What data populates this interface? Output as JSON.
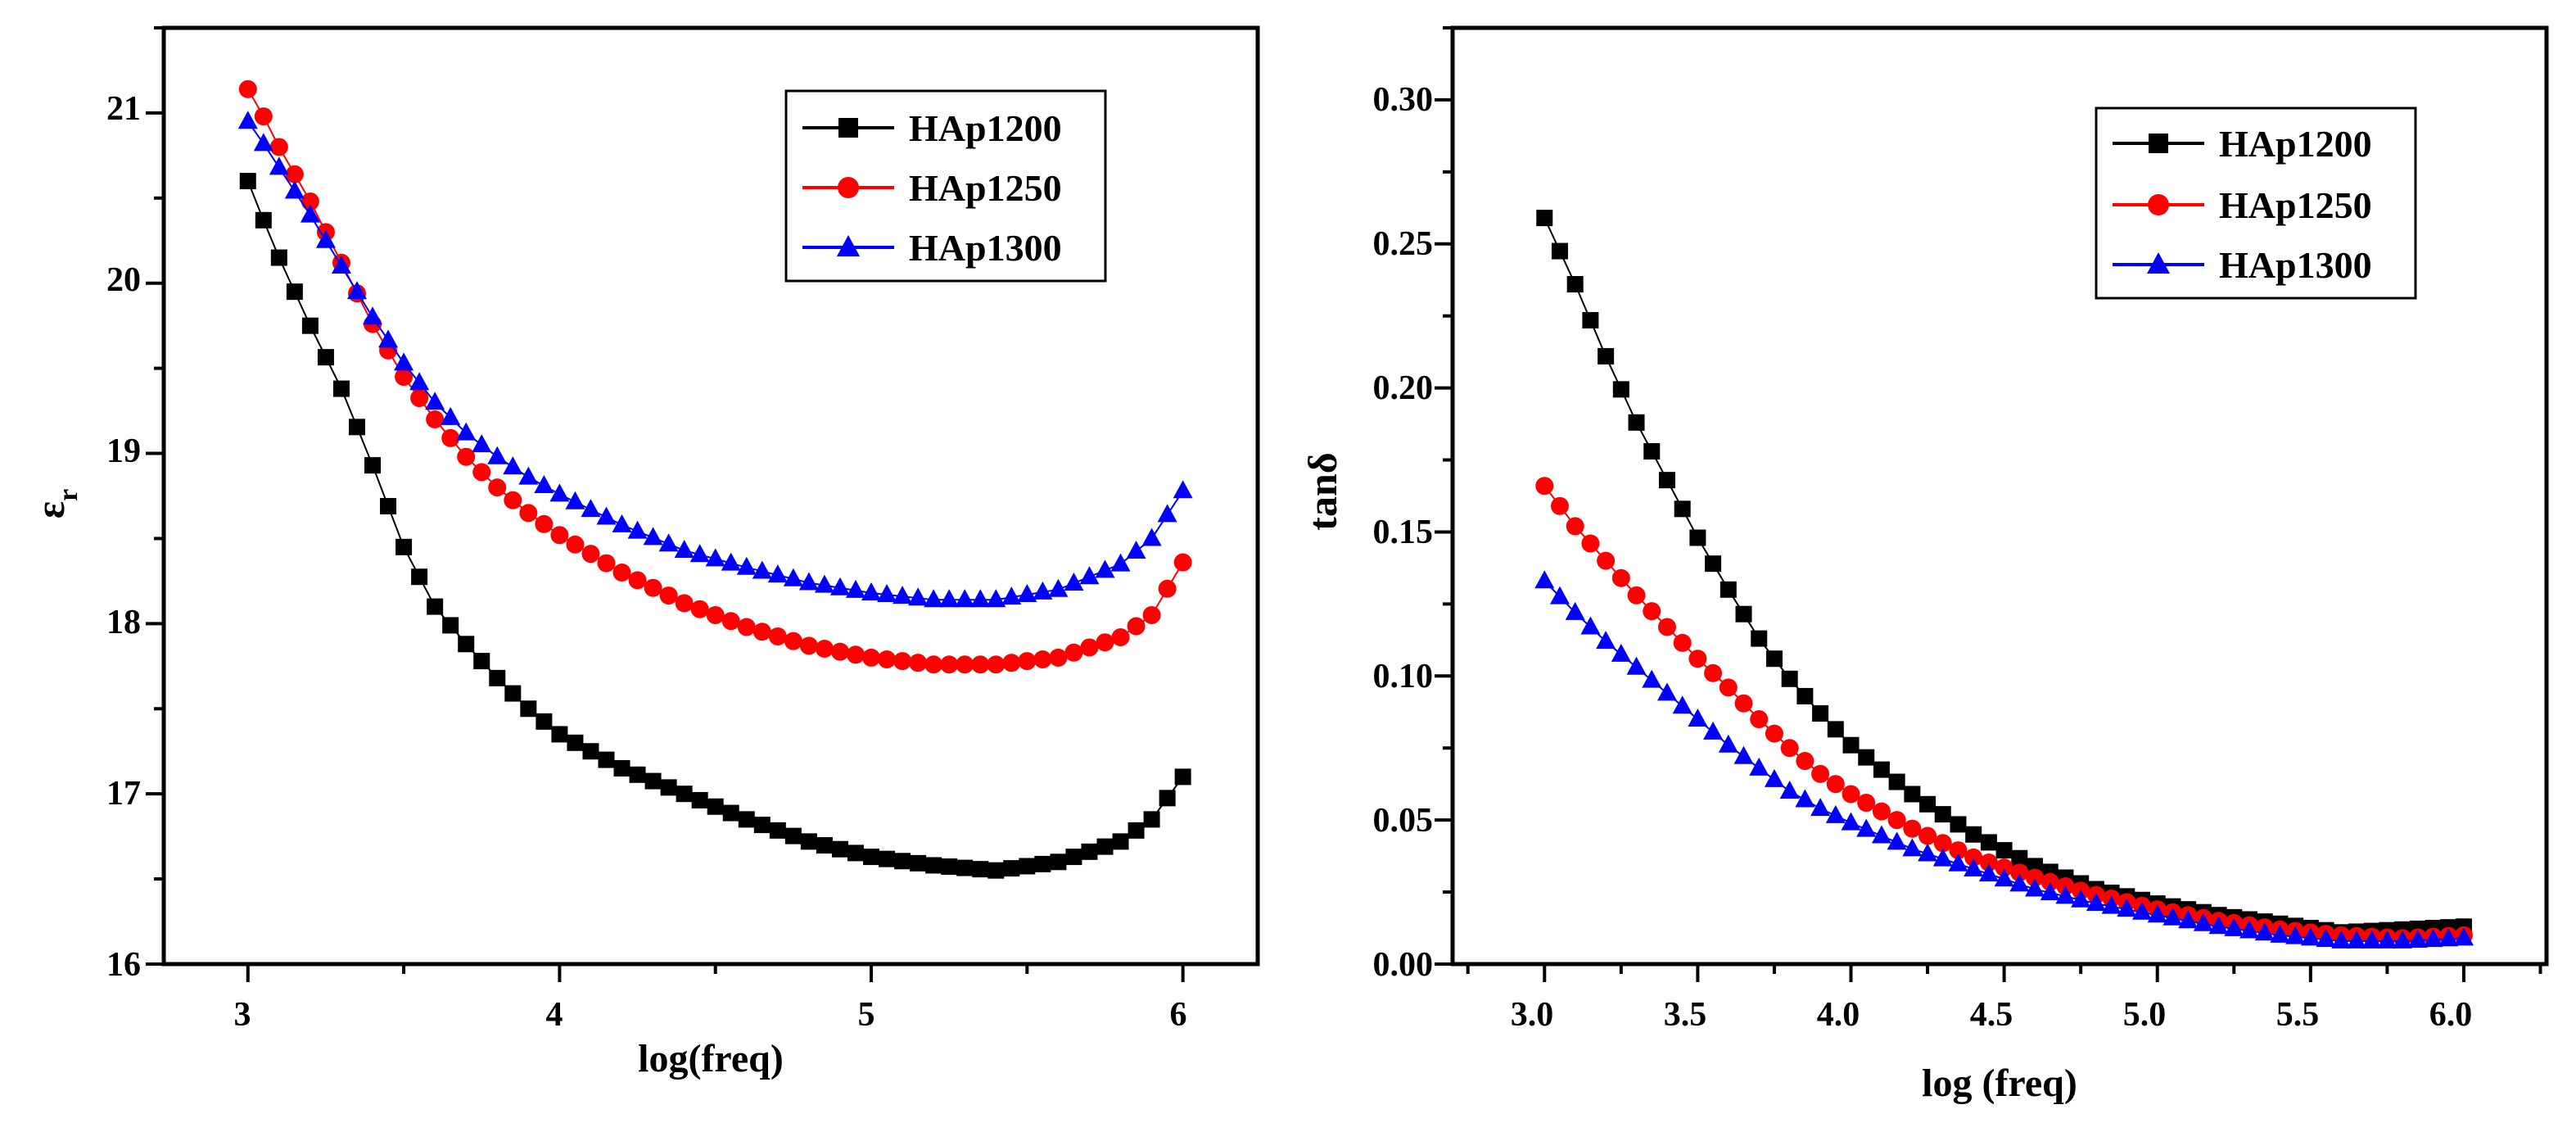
{
  "colors": {
    "HAp1200": "#000000",
    "HAp1250": "#ff0000",
    "HAp1300": "#0000ff"
  },
  "chart_data": [
    {
      "type": "scatter",
      "title": "",
      "xlabel": "log(freq)",
      "ylabel": "ε",
      "ylabel_sub": "r",
      "xlim": [
        2.73,
        6.24
      ],
      "ylim": [
        16,
        21.5
      ],
      "xticks": [
        3,
        4,
        5,
        6
      ],
      "xtick_labels": [
        "3",
        "4",
        "5",
        "6"
      ],
      "yticks": [
        16,
        17,
        18,
        19,
        20,
        21
      ],
      "ytick_labels": [
        "16",
        "17",
        "18",
        "19",
        "20",
        "21"
      ],
      "legend_position": "top-right",
      "legend": [
        "HAp1200",
        "HAp1250",
        "HAp1300"
      ],
      "series": [
        {
          "name": "HAp1200",
          "marker": "square",
          "keypoints": [
            [
              3.0,
              20.6
            ],
            [
              3.05,
              20.37
            ],
            [
              3.1,
              20.15
            ],
            [
              3.2,
              19.75
            ],
            [
              3.3,
              19.38
            ],
            [
              3.4,
              18.93
            ],
            [
              3.5,
              18.45
            ],
            [
              3.6,
              18.1
            ],
            [
              3.7,
              17.88
            ],
            [
              3.8,
              17.68
            ],
            [
              3.9,
              17.5
            ],
            [
              4.0,
              17.35
            ],
            [
              4.2,
              17.15
            ],
            [
              4.4,
              17.0
            ],
            [
              4.6,
              16.85
            ],
            [
              4.8,
              16.72
            ],
            [
              5.0,
              16.63
            ],
            [
              5.2,
              16.58
            ],
            [
              5.4,
              16.55
            ],
            [
              5.6,
              16.6
            ],
            [
              5.8,
              16.72
            ],
            [
              5.9,
              16.85
            ],
            [
              6.0,
              17.1
            ]
          ]
        },
        {
          "name": "HAp1250",
          "marker": "circle",
          "keypoints": [
            [
              3.0,
              21.14
            ],
            [
              3.05,
              20.98
            ],
            [
              3.1,
              20.8
            ],
            [
              3.2,
              20.48
            ],
            [
              3.3,
              20.12
            ],
            [
              3.4,
              19.76
            ],
            [
              3.5,
              19.45
            ],
            [
              3.6,
              19.2
            ],
            [
              3.7,
              18.98
            ],
            [
              3.8,
              18.8
            ],
            [
              3.9,
              18.65
            ],
            [
              4.0,
              18.52
            ],
            [
              4.2,
              18.3
            ],
            [
              4.4,
              18.12
            ],
            [
              4.6,
              17.98
            ],
            [
              4.8,
              17.87
            ],
            [
              5.0,
              17.8
            ],
            [
              5.2,
              17.76
            ],
            [
              5.4,
              17.76
            ],
            [
              5.6,
              17.8
            ],
            [
              5.8,
              17.92
            ],
            [
              5.9,
              18.05
            ],
            [
              6.0,
              18.36
            ]
          ]
        },
        {
          "name": "HAp1300",
          "marker": "triangle",
          "keypoints": [
            [
              3.0,
              20.95
            ],
            [
              3.05,
              20.82
            ],
            [
              3.1,
              20.68
            ],
            [
              3.2,
              20.4
            ],
            [
              3.3,
              20.1
            ],
            [
              3.4,
              19.8
            ],
            [
              3.5,
              19.53
            ],
            [
              3.6,
              19.3
            ],
            [
              3.7,
              19.12
            ],
            [
              3.8,
              18.98
            ],
            [
              3.9,
              18.86
            ],
            [
              4.0,
              18.76
            ],
            [
              4.2,
              18.58
            ],
            [
              4.4,
              18.43
            ],
            [
              4.6,
              18.33
            ],
            [
              4.8,
              18.24
            ],
            [
              5.0,
              18.18
            ],
            [
              5.2,
              18.14
            ],
            [
              5.4,
              18.14
            ],
            [
              5.6,
              18.2
            ],
            [
              5.8,
              18.35
            ],
            [
              5.9,
              18.5
            ],
            [
              6.0,
              18.78
            ]
          ]
        }
      ]
    },
    {
      "type": "scatter",
      "title": "",
      "xlabel": "log (freq)",
      "ylabel": "tanδ",
      "xlim": [
        2.7,
        6.27
      ],
      "ylim": [
        0,
        0.325
      ],
      "xticks": [
        3.0,
        3.5,
        4.0,
        4.5,
        5.0,
        5.5,
        6.0
      ],
      "xtick_labels": [
        "3.0",
        "3.5",
        "4.0",
        "4.5",
        "5.0",
        "5.5",
        "6.0"
      ],
      "yticks": [
        0,
        0.05,
        0.1,
        0.15,
        0.2,
        0.25,
        0.3
      ],
      "ytick_labels": [
        "0.00",
        "0.05",
        "0.10",
        "0.15",
        "0.20",
        "0.25",
        "0.30"
      ],
      "legend_position": "top-right",
      "legend": [
        "HAp1200",
        "HAp1250",
        "HAp1300"
      ],
      "series": [
        {
          "name": "HAp1200",
          "marker": "square",
          "keypoints": [
            [
              3.0,
              0.259
            ],
            [
              3.1,
              0.236
            ],
            [
              3.2,
              0.211
            ],
            [
              3.3,
              0.188
            ],
            [
              3.4,
              0.168
            ],
            [
              3.5,
              0.148
            ],
            [
              3.6,
              0.13
            ],
            [
              3.7,
              0.113
            ],
            [
              3.8,
              0.099
            ],
            [
              3.9,
              0.087
            ],
            [
              4.0,
              0.076
            ],
            [
              4.2,
              0.059
            ],
            [
              4.4,
              0.045
            ],
            [
              4.6,
              0.034
            ],
            [
              4.8,
              0.026
            ],
            [
              5.0,
              0.021
            ],
            [
              5.2,
              0.017
            ],
            [
              5.4,
              0.014
            ],
            [
              5.6,
              0.011
            ],
            [
              5.8,
              0.012
            ],
            [
              6.0,
              0.013
            ]
          ]
        },
        {
          "name": "HAp1250",
          "marker": "circle",
          "keypoints": [
            [
              3.0,
              0.166
            ],
            [
              3.1,
              0.152
            ],
            [
              3.2,
              0.14
            ],
            [
              3.3,
              0.128
            ],
            [
              3.4,
              0.117
            ],
            [
              3.5,
              0.106
            ],
            [
              3.6,
              0.096
            ],
            [
              3.7,
              0.085
            ],
            [
              3.8,
              0.075
            ],
            [
              3.9,
              0.066
            ],
            [
              4.0,
              0.059
            ],
            [
              4.2,
              0.047
            ],
            [
              4.4,
              0.037
            ],
            [
              4.6,
              0.03
            ],
            [
              4.8,
              0.024
            ],
            [
              5.0,
              0.019
            ],
            [
              5.2,
              0.015
            ],
            [
              5.4,
              0.012
            ],
            [
              5.6,
              0.01
            ],
            [
              5.8,
              0.009
            ],
            [
              6.0,
              0.01
            ]
          ]
        },
        {
          "name": "HAp1300",
          "marker": "triangle",
          "keypoints": [
            [
              3.0,
              0.133
            ],
            [
              3.1,
              0.122
            ],
            [
              3.2,
              0.112
            ],
            [
              3.3,
              0.103
            ],
            [
              3.4,
              0.094
            ],
            [
              3.5,
              0.085
            ],
            [
              3.6,
              0.076
            ],
            [
              3.7,
              0.068
            ],
            [
              3.8,
              0.06
            ],
            [
              3.9,
              0.054
            ],
            [
              4.0,
              0.049
            ],
            [
              4.2,
              0.04
            ],
            [
              4.4,
              0.033
            ],
            [
              4.6,
              0.026
            ],
            [
              4.8,
              0.021
            ],
            [
              5.0,
              0.017
            ],
            [
              5.2,
              0.013
            ],
            [
              5.4,
              0.01
            ],
            [
              5.6,
              0.008
            ],
            [
              5.8,
              0.008
            ],
            [
              6.0,
              0.009
            ]
          ]
        }
      ]
    }
  ]
}
